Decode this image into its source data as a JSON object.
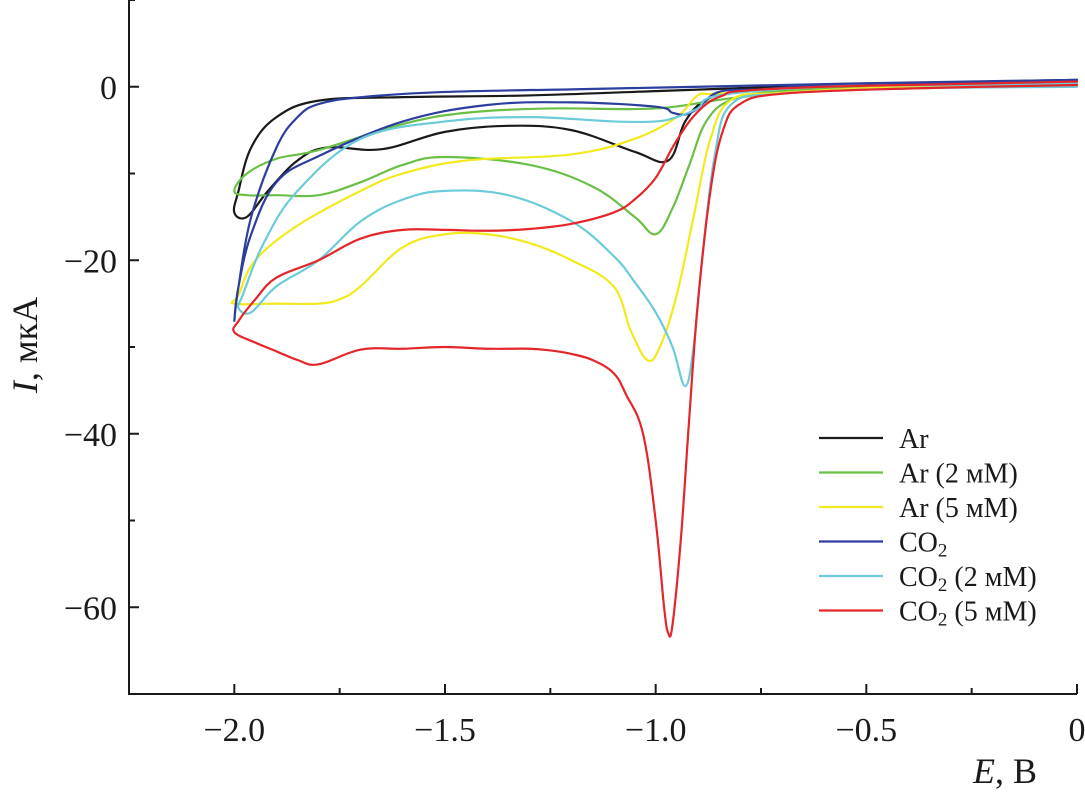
{
  "chart_data": {
    "type": "line",
    "xlabel": {
      "symbol": "E",
      "unit": ", В"
    },
    "ylabel": {
      "symbol": "I",
      "unit": ", мкА"
    },
    "xlim": [
      -2.25,
      0
    ],
    "ylim": [
      -70,
      10
    ],
    "x_ticks": [
      {
        "value": -2.0,
        "label": "−2.0"
      },
      {
        "value": -1.5,
        "label": "−1.5"
      },
      {
        "value": -1.0,
        "label": "−1.0"
      },
      {
        "value": -0.5,
        "label": "−0.5"
      },
      {
        "value": 0,
        "label": "0"
      }
    ],
    "y_ticks": [
      {
        "value": 0,
        "label": "0"
      },
      {
        "value": -20,
        "label": "−20"
      },
      {
        "value": -40,
        "label": "−40"
      },
      {
        "value": -60,
        "label": "−60"
      }
    ],
    "grid": false,
    "legend_position": "bottom-right",
    "series": [
      {
        "name": "Ar",
        "legend": {
          "main": "Ar",
          "sub": "",
          "rest": ""
        },
        "color": "#1a1a1a",
        "x": [
          0,
          -0.3,
          -0.6,
          -0.8,
          -0.88,
          -0.93,
          -0.97,
          -1.05,
          -1.2,
          -1.35,
          -1.5,
          -1.65,
          -1.78,
          -1.85,
          -1.92,
          -1.97,
          -2.0,
          -1.99,
          -1.96,
          -1.9,
          -1.8,
          -1.6,
          -1.3,
          -1.0,
          -0.7,
          -0.4,
          0
        ],
        "y": [
          0.5,
          0.3,
          0,
          -0.6,
          -1.5,
          -4,
          -8.5,
          -7.5,
          -5,
          -4.5,
          -5.2,
          -7.2,
          -7,
          -8.5,
          -12,
          -15,
          -14.5,
          -12,
          -7,
          -3.5,
          -1.6,
          -1.2,
          -1,
          -0.5,
          0,
          0.4,
          0.8
        ]
      },
      {
        "name": "Ar (2 мМ)",
        "legend": {
          "main": "Ar (2 мМ)",
          "sub": "",
          "rest": ""
        },
        "color": "#6abf45",
        "x": [
          0,
          -0.4,
          -0.7,
          -0.82,
          -0.88,
          -0.92,
          -0.96,
          -1.0,
          -1.05,
          -1.15,
          -1.3,
          -1.5,
          -1.6,
          -1.7,
          -1.8,
          -1.9,
          -1.97,
          -2.0,
          -1.97,
          -1.9,
          -1.8,
          -1.6,
          -1.45,
          -1.25,
          -1.0,
          -0.8,
          -0.5,
          0
        ],
        "y": [
          0.2,
          0,
          -0.5,
          -1.5,
          -4,
          -9,
          -14,
          -17,
          -15,
          -11.5,
          -9,
          -8.1,
          -9,
          -11,
          -12.5,
          -12.5,
          -12.5,
          -12,
          -10,
          -8.3,
          -7.3,
          -4.3,
          -3,
          -2.5,
          -2.5,
          -1.2,
          0,
          0.6
        ]
      },
      {
        "name": "Ar (5 мМ)",
        "legend": {
          "main": "Ar (5 мМ)",
          "sub": "",
          "rest": ""
        },
        "color": "#f2ea1e",
        "x": [
          0,
          -0.4,
          -0.7,
          -0.82,
          -0.87,
          -0.91,
          -0.95,
          -0.99,
          -1.02,
          -1.06,
          -1.1,
          -1.2,
          -1.3,
          -1.4,
          -1.5,
          -1.6,
          -1.7,
          -1.75,
          -1.8,
          -1.9,
          -2.0,
          -1.99,
          -1.95,
          -1.85,
          -1.7,
          -1.6,
          -1.45,
          -1.2,
          -1.05,
          -0.95,
          -0.9,
          -0.85,
          -0.6,
          -0.3,
          0
        ],
        "y": [
          0.3,
          0,
          -0.7,
          -1.5,
          -6,
          -15,
          -24,
          -30,
          -31.5,
          -28,
          -23,
          -20,
          -18,
          -17,
          -17,
          -18.5,
          -23,
          -24.5,
          -25,
          -25,
          -25,
          -24,
          -20,
          -16,
          -12,
          -10,
          -8.5,
          -7.8,
          -6,
          -3.5,
          -1,
          -0.8,
          0,
          0.2,
          0.5
        ]
      },
      {
        "name": "CO2",
        "legend": {
          "main": "CO",
          "sub": "2",
          "rest": ""
        },
        "color": "#2c3e9e",
        "x": [
          0,
          -0.3,
          -0.6,
          -0.75,
          -0.85,
          -0.9,
          -0.93,
          -0.96,
          -1.0,
          -1.2,
          -1.4,
          -1.6,
          -1.8,
          -1.9,
          -1.96,
          -1.99,
          -2.0,
          -1.99,
          -1.96,
          -1.9,
          -1.85,
          -1.8,
          -1.7,
          -1.5,
          -1.2,
          -1.0,
          -0.8,
          -0.5,
          0
        ],
        "y": [
          0.8,
          0.5,
          0.2,
          -0.3,
          -0.6,
          -2.5,
          -3.2,
          -3,
          -2.3,
          -1.8,
          -2.1,
          -4,
          -8,
          -11,
          -17,
          -23,
          -27,
          -23,
          -15,
          -7,
          -3.5,
          -2,
          -1.2,
          -0.6,
          -0.3,
          -0.1,
          0.1,
          0.4,
          0.8
        ]
      },
      {
        "name": "CO2 (2 мМ)",
        "legend": {
          "main": "CO",
          "sub": "2",
          "rest": " (2 мМ)"
        },
        "color": "#6ccbd9",
        "x": [
          0,
          -0.4,
          -0.7,
          -0.82,
          -0.86,
          -0.89,
          -0.91,
          -0.93,
          -0.96,
          -1.0,
          -1.05,
          -1.1,
          -1.2,
          -1.35,
          -1.5,
          -1.6,
          -1.7,
          -1.8,
          -1.9,
          -1.96,
          -1.99,
          -1.98,
          -1.93,
          -1.85,
          -1.7,
          -1.5,
          -1.3,
          -1.1,
          -1.0,
          -0.95,
          -0.9,
          -0.85,
          -0.6,
          -0.3,
          0
        ],
        "y": [
          0,
          -0.2,
          -0.8,
          -2,
          -8,
          -20,
          -30,
          -34.5,
          -30,
          -26,
          -22.5,
          -19.5,
          -15.5,
          -12.5,
          -12,
          -13,
          -15.5,
          -20,
          -23,
          -26,
          -25.5,
          -24,
          -18,
          -12,
          -6,
          -4,
          -3.5,
          -4,
          -4,
          -3.5,
          -2.5,
          -1,
          0,
          0.2,
          0.4
        ]
      },
      {
        "name": "CO2 (5 мМ)",
        "legend": {
          "main": "CO",
          "sub": "2",
          "rest": " (5 мМ)"
        },
        "color": "#e4262a",
        "x": [
          0,
          -0.4,
          -0.7,
          -0.8,
          -0.84,
          -0.87,
          -0.9,
          -0.92,
          -0.94,
          -0.96,
          -0.97,
          -0.98,
          -1.0,
          -1.03,
          -1.07,
          -1.1,
          -1.15,
          -1.2,
          -1.25,
          -1.3,
          -1.4,
          -1.5,
          -1.6,
          -1.7,
          -1.8,
          -1.85,
          -1.9,
          -1.95,
          -2.0,
          -1.99,
          -1.95,
          -1.9,
          -1.8,
          -1.7,
          -1.6,
          -1.5,
          -1.4,
          -1.3,
          -1.2,
          -1.1,
          -1.05,
          -1.0,
          -0.96,
          -0.92,
          -0.88,
          -0.84,
          -0.8,
          -0.6,
          -0.3,
          0
        ],
        "y": [
          0.2,
          -0.2,
          -0.8,
          -2,
          -5,
          -12,
          -25,
          -38,
          -52,
          -62,
          -63,
          -60,
          -50,
          -40,
          -35.5,
          -33,
          -31.5,
          -30.8,
          -30.4,
          -30.2,
          -30.2,
          -30,
          -30.2,
          -30.3,
          -32,
          -31.5,
          -30.5,
          -29.5,
          -28.3,
          -27,
          -24.5,
          -22,
          -20,
          -17.5,
          -16.5,
          -16.5,
          -16.6,
          -16.4,
          -15.8,
          -14.5,
          -13,
          -10.5,
          -7,
          -4,
          -2,
          -1,
          -0.5,
          0,
          0.3,
          0.6
        ]
      }
    ]
  }
}
